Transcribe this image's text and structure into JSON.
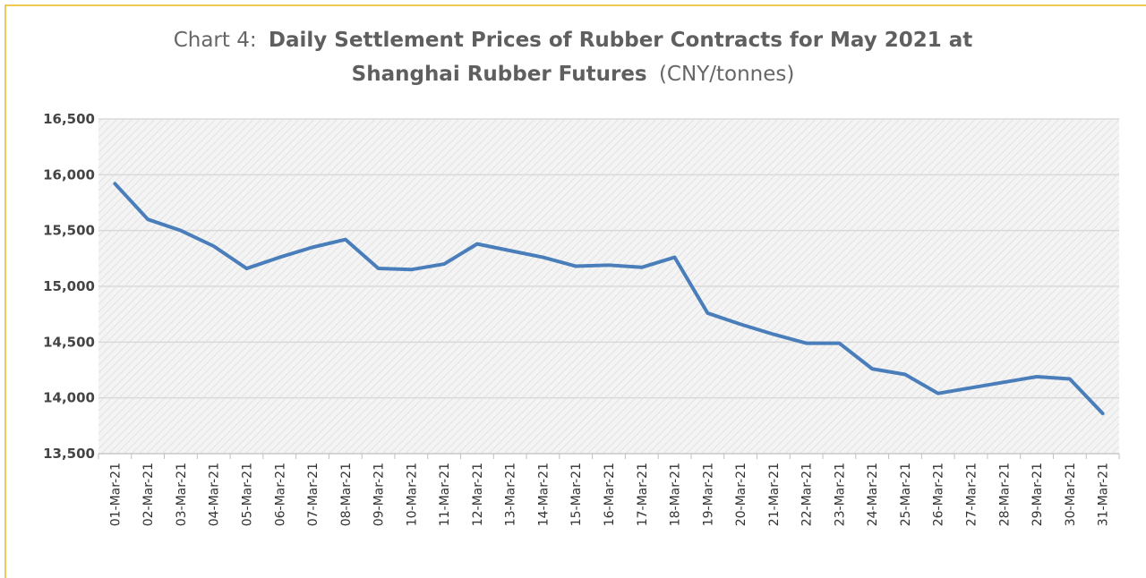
{
  "chart_data": {
    "type": "line",
    "title": [
      "Chart 4:",
      "Daily Settlement Prices of Rubber Contracts for May 2021 at",
      "Shanghai Rubber Futures",
      "(CNY/tonnes)"
    ],
    "categories": [
      "01-Mar-21",
      "02-Mar-21",
      "03-Mar-21",
      "04-Mar-21",
      "05-Mar-21",
      "06-Mar-21",
      "07-Mar-21",
      "08-Mar-21",
      "09-Mar-21",
      "10-Mar-21",
      "11-Mar-21",
      "12-Mar-21",
      "13-Mar-21",
      "14-Mar-21",
      "15-Mar-21",
      "16-Mar-21",
      "17-Mar-21",
      "18-Mar-21",
      "19-Mar-21",
      "20-Mar-21",
      "21-Mar-21",
      "22-Mar-21",
      "23-Mar-21",
      "24-Mar-21",
      "25-Mar-21",
      "26-Mar-21",
      "27-Mar-21",
      "28-Mar-21",
      "29-Mar-21",
      "30-Mar-21",
      "31-Mar-21"
    ],
    "values": [
      15920,
      15600,
      15500,
      15360,
      15160,
      15260,
      15350,
      15420,
      15160,
      15150,
      15200,
      15380,
      15320,
      15260,
      15180,
      15190,
      15170,
      15260,
      14760,
      14660,
      14570,
      14490,
      14490,
      14260,
      14210,
      14040,
      14090,
      14140,
      14190,
      14170,
      13860
    ],
    "color": "#4a7ebb",
    "ylim": [
      13500,
      16500
    ],
    "yticks": [
      {
        "value": 13500,
        "label": "13,500"
      },
      {
        "value": 14000,
        "label": "14,000"
      },
      {
        "value": 14500,
        "label": "14,500"
      },
      {
        "value": 15000,
        "label": "15,000"
      },
      {
        "value": 15500,
        "label": "15,500"
      },
      {
        "value": 16000,
        "label": "16,000"
      },
      {
        "value": 16500,
        "label": "16,500"
      }
    ],
    "grid": true
  }
}
